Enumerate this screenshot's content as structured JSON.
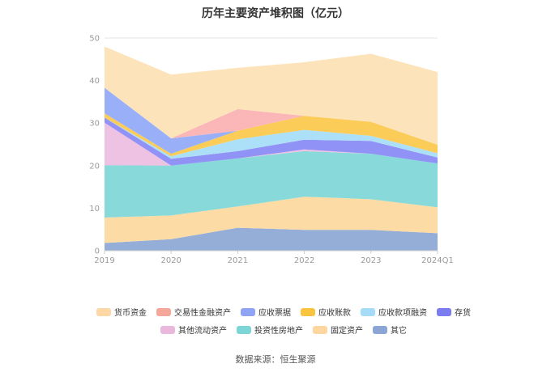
{
  "chart_data": {
    "type": "area",
    "title": "历年主要资产堆积图（亿元）",
    "categories": [
      "2019",
      "2020",
      "2021",
      "2022",
      "2023",
      "2024Q1"
    ],
    "ylim": [
      0,
      50
    ],
    "yticks": [
      0,
      10,
      20,
      30,
      40,
      50
    ],
    "grid": true,
    "legend_position": "bottom",
    "series": [
      {
        "name": "其它",
        "color": "#8eaad6",
        "values": [
          1.8,
          2.7,
          5.4,
          4.9,
          4.9,
          4.1
        ]
      },
      {
        "name": "固定资产",
        "color": "#fdd9a0",
        "values": [
          6.0,
          5.6,
          5.0,
          7.8,
          7.2,
          6.1
        ]
      },
      {
        "name": "投资性房地产",
        "color": "#82d8d8",
        "values": [
          12.3,
          11.7,
          11.3,
          10.7,
          10.7,
          10.3
        ]
      },
      {
        "name": "其他流动资产",
        "color": "#ecbfe0",
        "values": [
          10.0,
          0.0,
          0.0,
          0.4,
          0.0,
          0.0
        ]
      },
      {
        "name": "存货",
        "color": "#8b8cf5",
        "values": [
          1.2,
          1.6,
          1.7,
          2.3,
          3.0,
          1.4
        ]
      },
      {
        "name": "应收款项融资",
        "color": "#a8def8",
        "values": [
          0.0,
          0.6,
          2.8,
          2.3,
          1.2,
          1.0
        ]
      },
      {
        "name": "应收账款",
        "color": "#fbc94f",
        "values": [
          1.0,
          0.6,
          2.0,
          3.3,
          3.3,
          2.0
        ]
      },
      {
        "name": "应收票据",
        "color": "#93acf8",
        "values": [
          6.0,
          3.6,
          0.0,
          0.0,
          0.0,
          0.0
        ]
      },
      {
        "name": "交易性金融资产",
        "color": "#fbb3b3",
        "values": [
          0.0,
          0.0,
          5.1,
          0.0,
          0.0,
          0.0
        ]
      },
      {
        "name": "货币资金",
        "color": "#fde2b6",
        "values": [
          9.7,
          15.0,
          9.7,
          12.6,
          16.0,
          17.1
        ]
      }
    ]
  },
  "legend": {
    "row1": [
      {
        "name": "货币资金",
        "color": "#fdd8a4"
      },
      {
        "name": "交易性金融资产",
        "color": "#f5a89a"
      },
      {
        "name": "应收票据",
        "color": "#8fa4f5"
      },
      {
        "name": "应收账款",
        "color": "#fbc43e"
      },
      {
        "name": "应收款项融资",
        "color": "#a6dcf8"
      },
      {
        "name": "存货",
        "color": "#7b7cf0"
      }
    ],
    "row2": [
      {
        "name": "其他流动资产",
        "color": "#e9b8dc"
      },
      {
        "name": "投资性房地产",
        "color": "#7ed5d5"
      },
      {
        "name": "固定资产",
        "color": "#fdd6a0"
      },
      {
        "name": "其它",
        "color": "#8ba6d4"
      }
    ]
  },
  "source": "数据来源：恒生聚源"
}
